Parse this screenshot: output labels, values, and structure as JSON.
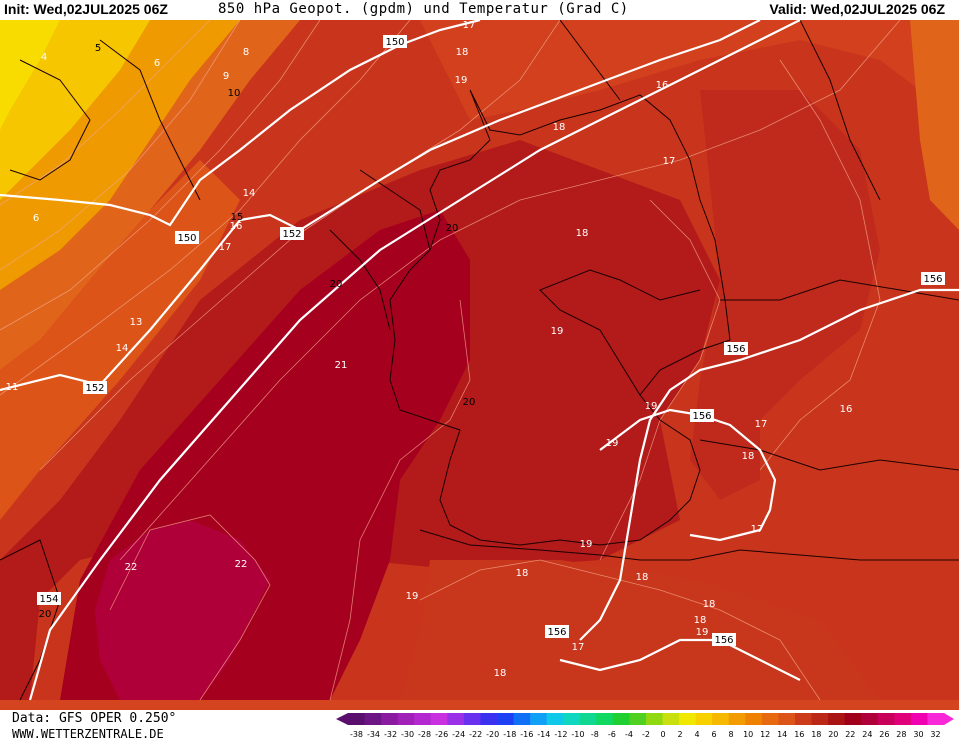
{
  "header": {
    "init": "Init: Wed,02JUL2025 06Z",
    "title": "850 hPa Geopot. (gpdm) und Temperatur (Grad C)",
    "valid": "Valid: Wed,02JUL2025 06Z"
  },
  "footer": {
    "data_source": "Data: GFS OPER 0.250°",
    "website": "WWW.WETTERZENTRALE.DE"
  },
  "colors": {
    "warmest": "#b0003a",
    "very_warm": "#a6001f",
    "warm": "#b31a1a",
    "mid": "#c42e1c",
    "mild": "#d4441e",
    "cooler": "#e0641a",
    "cool": "#ee9a00",
    "cold": "#f6c600"
  },
  "geopotential_labels": [
    {
      "text": "150"
    },
    {
      "text": "150"
    },
    {
      "text": "152"
    },
    {
      "text": "152"
    },
    {
      "text": "154"
    },
    {
      "text": "156"
    },
    {
      "text": "156"
    },
    {
      "text": "156"
    },
    {
      "text": "156"
    },
    {
      "text": "156"
    }
  ],
  "temperature_labels": [
    {
      "text": "4"
    },
    {
      "text": "5"
    },
    {
      "text": "6"
    },
    {
      "text": "8"
    },
    {
      "text": "9"
    },
    {
      "text": "10"
    },
    {
      "text": "6"
    },
    {
      "text": "14"
    },
    {
      "text": "15"
    },
    {
      "text": "16"
    },
    {
      "text": "17"
    },
    {
      "text": "13"
    },
    {
      "text": "14"
    },
    {
      "text": "11"
    },
    {
      "text": "17"
    },
    {
      "text": "18"
    },
    {
      "text": "19"
    },
    {
      "text": "16"
    },
    {
      "text": "18"
    },
    {
      "text": "17"
    },
    {
      "text": "20"
    },
    {
      "text": "18"
    },
    {
      "text": "20"
    },
    {
      "text": "19"
    },
    {
      "text": "21"
    },
    {
      "text": "20"
    },
    {
      "text": "19"
    },
    {
      "text": "19"
    },
    {
      "text": "17"
    },
    {
      "text": "16"
    },
    {
      "text": "18"
    },
    {
      "text": "17"
    },
    {
      "text": "22"
    },
    {
      "text": "22"
    },
    {
      "text": "20"
    },
    {
      "text": "19"
    },
    {
      "text": "18"
    },
    {
      "text": "18"
    },
    {
      "text": "18"
    },
    {
      "text": "18"
    },
    {
      "text": "19"
    },
    {
      "text": "17"
    },
    {
      "text": "18"
    },
    {
      "text": "19"
    }
  ],
  "color_scale": {
    "ticks": [
      "-38",
      "-34",
      "-32",
      "-30",
      "-28",
      "-26",
      "-24",
      "-22",
      "-20",
      "-18",
      "-16",
      "-14",
      "-12",
      "-10",
      "-8",
      "-6",
      "-4",
      "-2",
      "0",
      "2",
      "4",
      "6",
      "8",
      "10",
      "12",
      "14",
      "16",
      "18",
      "20",
      "22",
      "24",
      "26",
      "28",
      "30",
      "32"
    ],
    "colors": [
      "#5a0f6e",
      "#6e1585",
      "#8a1aa0",
      "#a020b8",
      "#b428d0",
      "#c830e0",
      "#9a30e8",
      "#6a30f0",
      "#3a30f0",
      "#1e40f5",
      "#1070f5",
      "#10a0f5",
      "#10c8e8",
      "#10d8c0",
      "#10d890",
      "#10d860",
      "#20d030",
      "#50d020",
      "#90d810",
      "#c8e010",
      "#f0e800",
      "#f8d000",
      "#f6b800",
      "#f29c00",
      "#ee8200",
      "#e86a10",
      "#dc5418",
      "#cc3a1a",
      "#bc2818",
      "#aa1412",
      "#a0001a",
      "#b0003a",
      "#c8005a",
      "#e0007a",
      "#f000b0",
      "#f828d8"
    ]
  }
}
